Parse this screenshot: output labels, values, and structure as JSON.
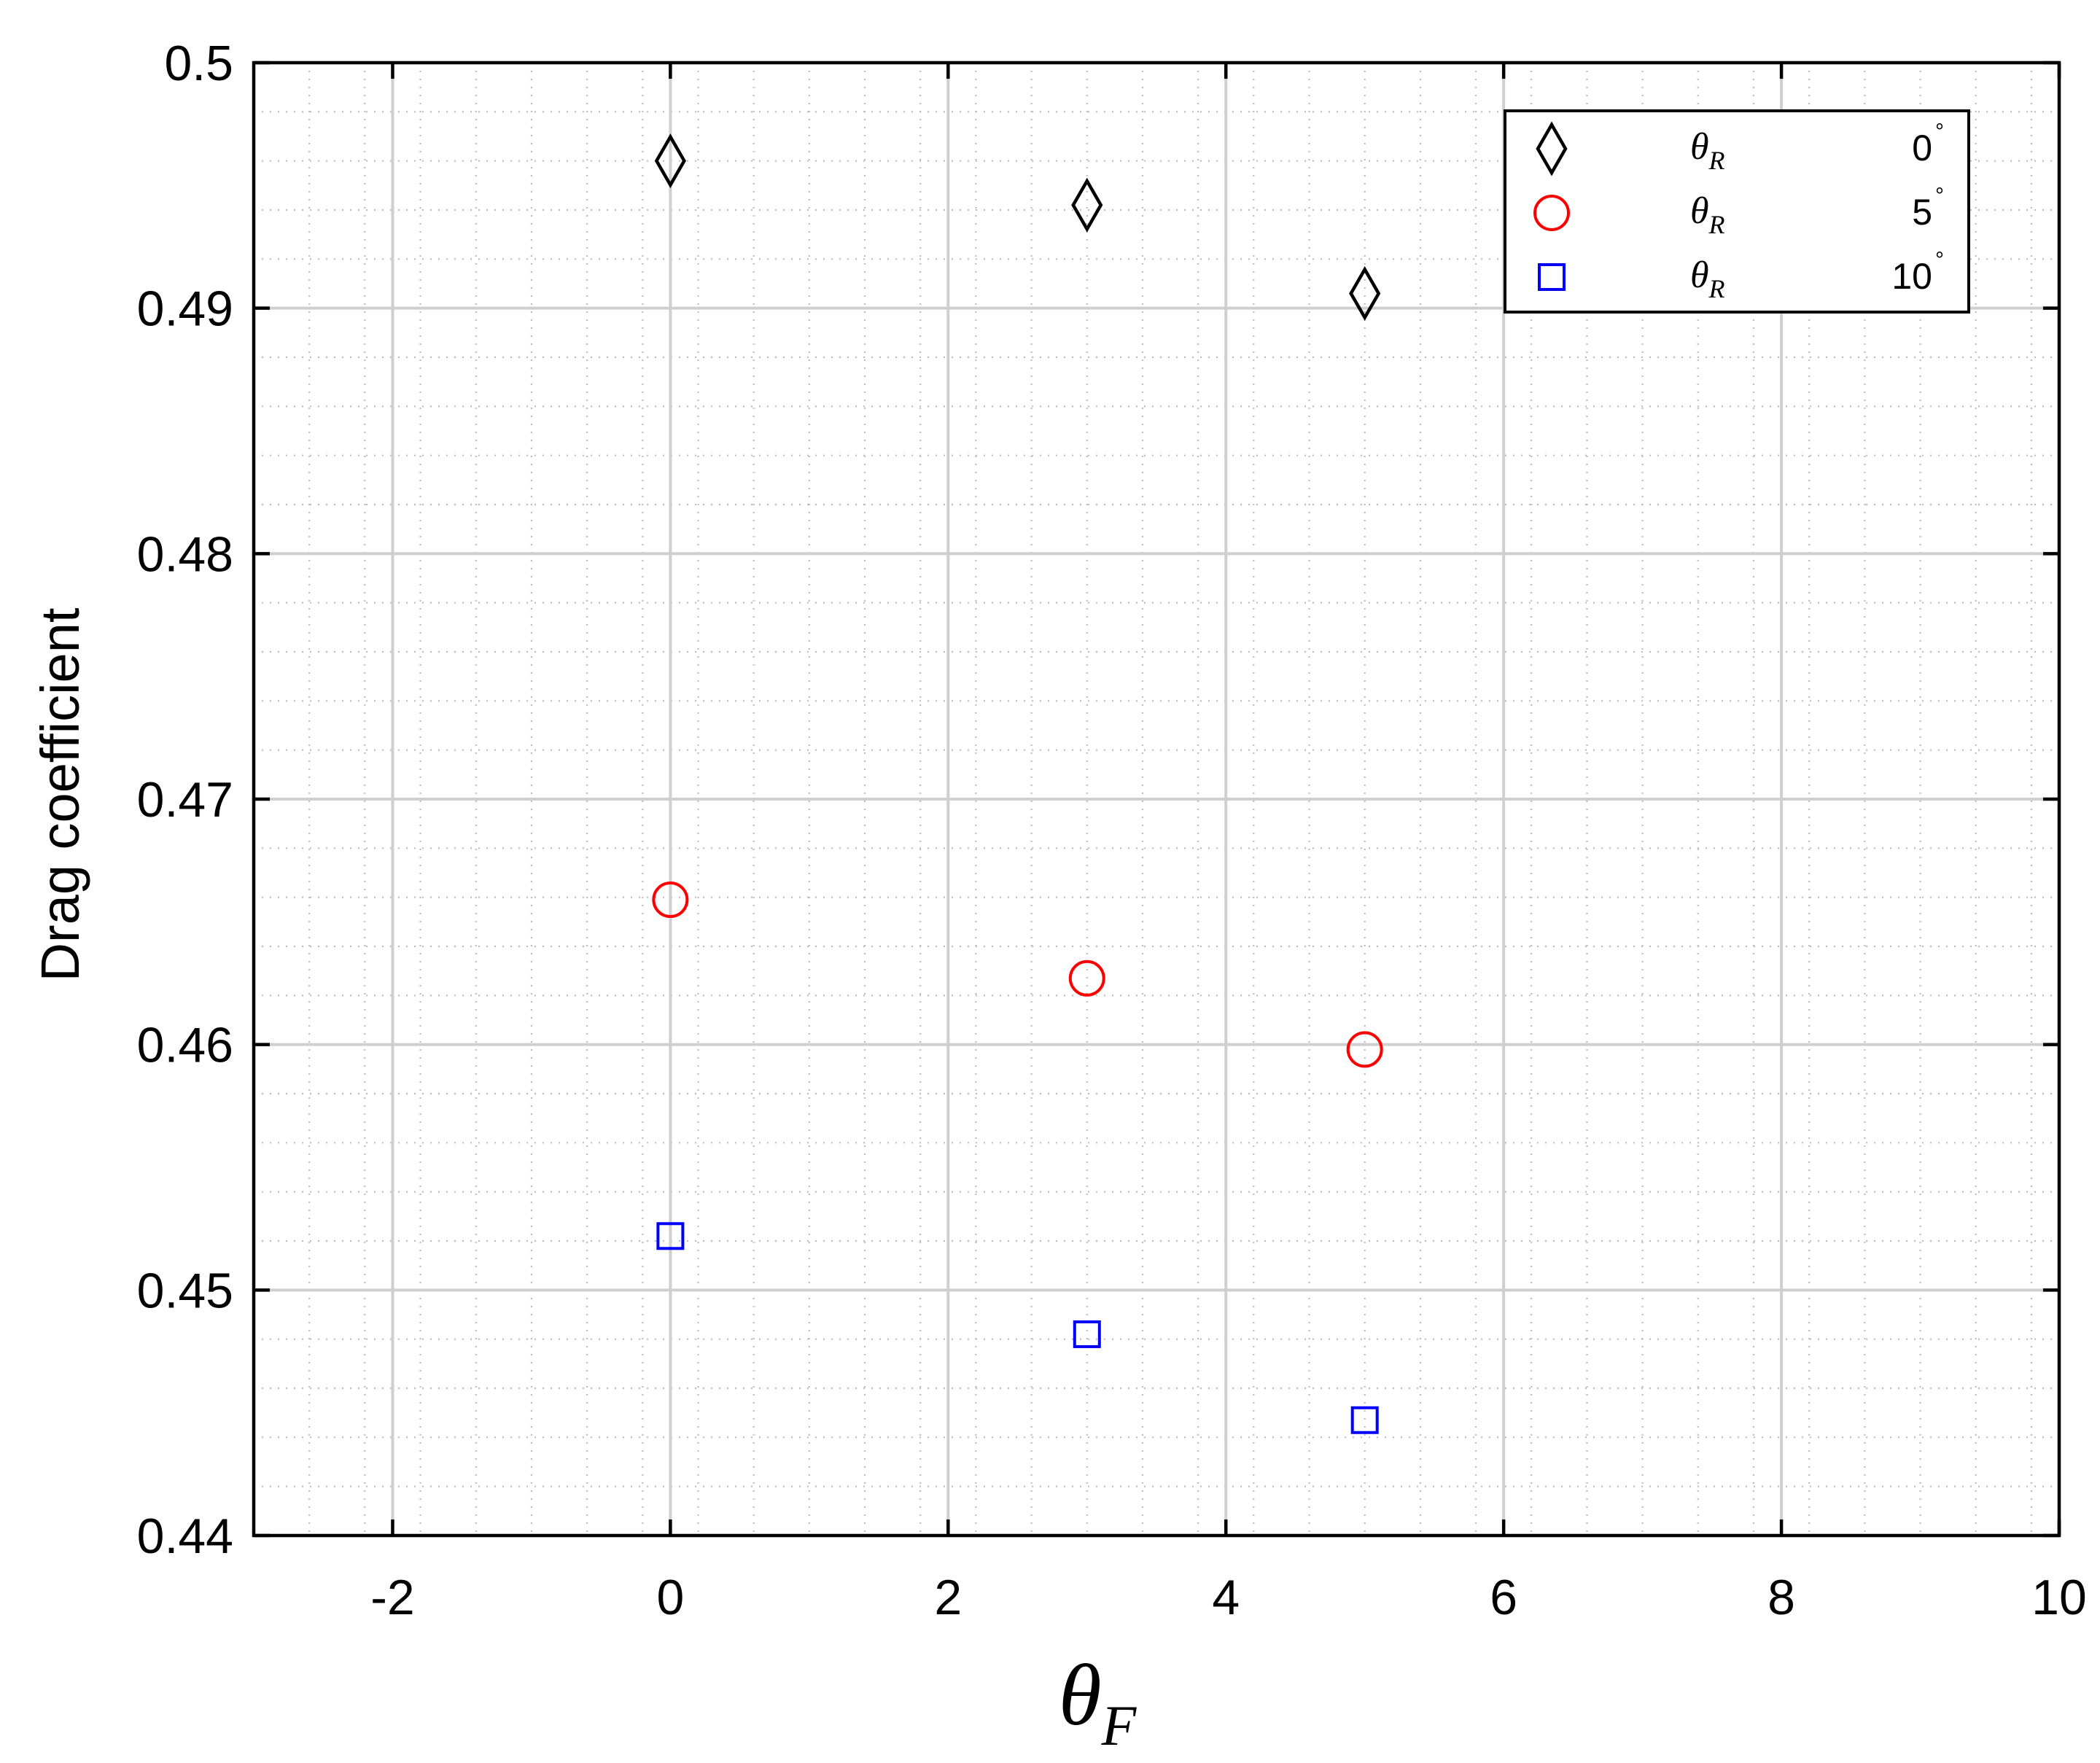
{
  "chart_data": {
    "type": "scatter",
    "title": "",
    "xlabel": "θ",
    "xlabel_sub": "F",
    "ylabel": "Drag coefficient",
    "xlim": [
      -3,
      10
    ],
    "ylim": [
      0.44,
      0.5
    ],
    "xticks": [
      -2,
      0,
      2,
      4,
      6,
      8,
      10
    ],
    "xtick_labels": [
      "-2",
      "0",
      "2",
      "4",
      "6",
      "8",
      "10"
    ],
    "yticks": [
      0.44,
      0.45,
      0.46,
      0.47,
      0.48,
      0.49,
      0.5
    ],
    "ytick_labels": [
      "0.44",
      "0.45",
      "0.46",
      "0.47",
      "0.48",
      "0.49",
      "0.5"
    ],
    "grid": true,
    "minor_grid": true,
    "legend_position": "top-right",
    "series": [
      {
        "label_symbol": "θ",
        "label_sub": "R",
        "label_value": "0",
        "label_unit": "°",
        "marker": "diamond",
        "color": "#000000",
        "x": [
          0,
          3,
          5
        ],
        "y": [
          0.496,
          0.4942,
          0.4906
        ]
      },
      {
        "label_symbol": "θ",
        "label_sub": "R",
        "label_value": "5",
        "label_unit": "°",
        "marker": "circle",
        "color": "#ff0000",
        "x": [
          0,
          3,
          5
        ],
        "y": [
          0.4659,
          0.4627,
          0.4598
        ]
      },
      {
        "label_symbol": "θ",
        "label_sub": "R",
        "label_value": "10",
        "label_unit": "°",
        "marker": "square",
        "color": "#0000ff",
        "x": [
          0,
          3,
          5
        ],
        "y": [
          0.4522,
          0.4482,
          0.4447
        ]
      }
    ]
  }
}
